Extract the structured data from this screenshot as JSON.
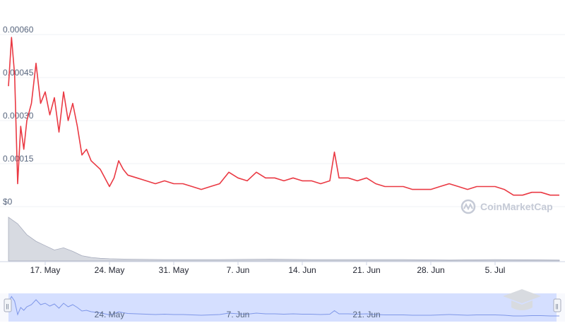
{
  "chart_data": {
    "type": "line",
    "title": "",
    "y_axis": {
      "tick_labels": [
        "$0",
        "0.00015",
        "0.00030",
        "0.00045",
        "0.00060"
      ],
      "tick_values": [
        0,
        0.00015,
        0.0003,
        0.00045,
        0.0006
      ],
      "ylim": [
        0,
        0.0006
      ]
    },
    "x_axis": {
      "tick_labels": [
        "17. May",
        "24. May",
        "31. May",
        "7. Jun",
        "14. Jun",
        "21. Jun",
        "28. Jun",
        "5. Jul"
      ],
      "tick_dates": [
        "2021-05-17",
        "2021-05-24",
        "2021-05-31",
        "2021-06-07",
        "2021-06-14",
        "2021-06-21",
        "2021-06-28",
        "2021-07-05"
      ],
      "range": [
        "2021-05-13",
        "2021-07-12"
      ]
    },
    "grid": true,
    "series": [
      {
        "color": "#ea3943",
        "points": [
          [
            "2021-05-13",
            0.00042
          ],
          [
            "2021-05-13T08",
            0.00059
          ],
          [
            "2021-05-13T16",
            0.00046
          ],
          [
            "2021-05-14",
            8e-05
          ],
          [
            "2021-05-14T08",
            0.00028
          ],
          [
            "2021-05-14T16",
            0.0002
          ],
          [
            "2021-05-15",
            0.0003
          ],
          [
            "2021-05-15T12",
            0.00036
          ],
          [
            "2021-05-16",
            0.0005
          ],
          [
            "2021-05-16T12",
            0.00036
          ],
          [
            "2021-05-17",
            0.0004
          ],
          [
            "2021-05-17T12",
            0.00032
          ],
          [
            "2021-05-18",
            0.00038
          ],
          [
            "2021-05-18T12",
            0.00026
          ],
          [
            "2021-05-19",
            0.0004
          ],
          [
            "2021-05-19T12",
            0.0003
          ],
          [
            "2021-05-20",
            0.00036
          ],
          [
            "2021-05-20T12",
            0.00028
          ],
          [
            "2021-05-21",
            0.00018
          ],
          [
            "2021-05-21T12",
            0.0002
          ],
          [
            "2021-05-22",
            0.00016
          ],
          [
            "2021-05-23",
            0.00013
          ],
          [
            "2021-05-23T12",
            0.0001
          ],
          [
            "2021-05-24",
            7e-05
          ],
          [
            "2021-05-24T12",
            0.0001
          ],
          [
            "2021-05-25",
            0.00016
          ],
          [
            "2021-05-25T12",
            0.00013
          ],
          [
            "2021-05-26",
            0.00011
          ],
          [
            "2021-05-27",
            0.0001
          ],
          [
            "2021-05-28",
            9e-05
          ],
          [
            "2021-05-29",
            8e-05
          ],
          [
            "2021-05-30",
            9e-05
          ],
          [
            "2021-05-31",
            8e-05
          ],
          [
            "2021-06-01",
            8e-05
          ],
          [
            "2021-06-02",
            7e-05
          ],
          [
            "2021-06-03",
            6e-05
          ],
          [
            "2021-06-04",
            7e-05
          ],
          [
            "2021-06-05",
            8e-05
          ],
          [
            "2021-06-06",
            0.00012
          ],
          [
            "2021-06-07",
            0.0001
          ],
          [
            "2021-06-08",
            9e-05
          ],
          [
            "2021-06-09",
            0.00012
          ],
          [
            "2021-06-10",
            0.0001
          ],
          [
            "2021-06-11",
            0.0001
          ],
          [
            "2021-06-12",
            9e-05
          ],
          [
            "2021-06-13",
            0.0001
          ],
          [
            "2021-06-14",
            9e-05
          ],
          [
            "2021-06-15",
            9e-05
          ],
          [
            "2021-06-16",
            8e-05
          ],
          [
            "2021-06-17",
            9e-05
          ],
          [
            "2021-06-17T12",
            0.00019
          ],
          [
            "2021-06-18",
            0.0001
          ],
          [
            "2021-06-19",
            0.0001
          ],
          [
            "2021-06-20",
            9e-05
          ],
          [
            "2021-06-21",
            0.0001
          ],
          [
            "2021-06-22",
            8e-05
          ],
          [
            "2021-06-23",
            7e-05
          ],
          [
            "2021-06-24",
            7e-05
          ],
          [
            "2021-06-25",
            7e-05
          ],
          [
            "2021-06-26",
            6e-05
          ],
          [
            "2021-06-27",
            6e-05
          ],
          [
            "2021-06-28",
            6e-05
          ],
          [
            "2021-06-29",
            7e-05
          ],
          [
            "2021-06-30",
            8e-05
          ],
          [
            "2021-07-01",
            7e-05
          ],
          [
            "2021-07-02",
            6e-05
          ],
          [
            "2021-07-03",
            7e-05
          ],
          [
            "2021-07-04",
            7e-05
          ],
          [
            "2021-07-05",
            7e-05
          ],
          [
            "2021-07-06",
            6e-05
          ],
          [
            "2021-07-07",
            4e-05
          ],
          [
            "2021-07-08",
            4e-05
          ],
          [
            "2021-07-09",
            5e-05
          ],
          [
            "2021-07-10",
            5e-05
          ],
          [
            "2021-07-11",
            4e-05
          ],
          [
            "2021-07-12",
            4e-05
          ]
        ]
      }
    ],
    "volume": {
      "color": "#a7acbd",
      "points": [
        [
          "2021-05-13",
          1.0
        ],
        [
          "2021-05-14",
          0.85
        ],
        [
          "2021-05-15",
          0.6
        ],
        [
          "2021-05-16",
          0.45
        ],
        [
          "2021-05-17",
          0.35
        ],
        [
          "2021-05-18",
          0.25
        ],
        [
          "2021-05-19",
          0.3
        ],
        [
          "2021-05-20",
          0.22
        ],
        [
          "2021-05-21",
          0.12
        ],
        [
          "2021-05-22",
          0.08
        ],
        [
          "2021-05-23",
          0.06
        ],
        [
          "2021-05-24",
          0.05
        ],
        [
          "2021-05-26",
          0.04
        ],
        [
          "2021-05-30",
          0.03
        ],
        [
          "2021-06-05",
          0.03
        ],
        [
          "2021-06-10",
          0.04
        ],
        [
          "2021-06-15",
          0.03
        ],
        [
          "2021-06-20",
          0.03
        ],
        [
          "2021-06-25",
          0.03
        ],
        [
          "2021-06-30",
          0.02
        ],
        [
          "2021-07-05",
          0.03
        ],
        [
          "2021-07-12",
          0.02
        ]
      ]
    },
    "navigator": {
      "tick_labels": [
        "24. May",
        "7. Jun",
        "21. Jun"
      ],
      "tick_dates": [
        "2021-05-24",
        "2021-06-07",
        "2021-06-21"
      ],
      "handle_glyph": "||"
    },
    "watermark": "CoinMarketCap"
  },
  "colors": {
    "line": "#ea3943",
    "volume": "#a7acbd",
    "grid": "#eff2f5",
    "navigator_fill": "#c9d6ff",
    "navigator_line": "#7f97e8"
  },
  "corner_logo": {
    "icon": "graduation-cap-icon"
  }
}
